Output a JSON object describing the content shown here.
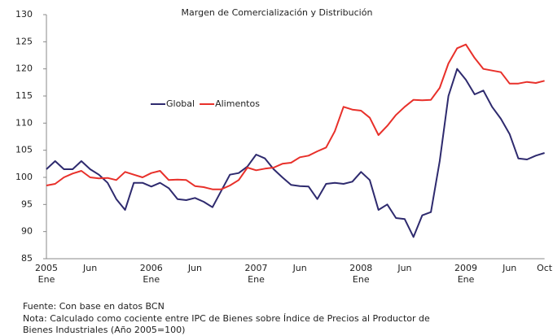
{
  "chart_data": {
    "type": "line",
    "title": "Margen de Comercialización y Distribución",
    "categories": [
      [
        "2005",
        "Ene"
      ],
      null,
      null,
      null,
      null,
      [
        "Jun"
      ],
      null,
      null,
      null,
      null,
      null,
      null,
      [
        "2006",
        "Ene"
      ],
      null,
      null,
      null,
      null,
      [
        "Jun"
      ],
      null,
      null,
      null,
      null,
      null,
      null,
      [
        "2007",
        "Ene"
      ],
      null,
      null,
      null,
      null,
      [
        "Jun"
      ],
      null,
      null,
      null,
      null,
      null,
      null,
      [
        "2008",
        "Ene"
      ],
      null,
      null,
      null,
      null,
      [
        "Jun"
      ],
      null,
      null,
      null,
      null,
      null,
      null,
      [
        "2009",
        "Ene"
      ],
      null,
      null,
      null,
      null,
      [
        "Jun"
      ],
      null,
      null,
      null,
      [
        "Oct"
      ]
    ],
    "series": [
      {
        "name": "Global",
        "color": "#2e2a6e",
        "values": [
          101.5,
          103,
          101.5,
          101.5,
          103,
          101.5,
          100.5,
          99,
          96,
          94,
          99,
          99,
          98.3,
          99,
          98,
          96,
          95.8,
          96.2,
          95.5,
          94.5,
          97.5,
          100.5,
          100.8,
          102,
          104.2,
          103.5,
          101.5,
          100,
          98.6,
          98.4,
          98.3,
          96,
          98.8,
          99,
          98.8,
          99.2,
          101,
          99.5,
          94,
          95,
          92.5,
          92.3,
          89,
          93,
          93.6,
          103,
          115,
          120,
          118,
          115.3,
          116,
          113,
          110.8,
          108,
          103.5,
          103.3,
          104,
          104.5
        ]
      },
      {
        "name": "Alimentos",
        "color": "#e8302a",
        "values": [
          98.5,
          98.8,
          100,
          100.7,
          101.2,
          100,
          99.8,
          99.9,
          99.5,
          101,
          100.5,
          100,
          100.8,
          101.2,
          99.5,
          99.6,
          99.5,
          98.4,
          98.2,
          97.8,
          97.8,
          98.5,
          99.5,
          101.8,
          101.3,
          101.6,
          101.8,
          102.5,
          102.7,
          103.7,
          104,
          104.8,
          105.5,
          108.5,
          113,
          112.5,
          112.3,
          111,
          107.8,
          109.5,
          111.5,
          113,
          114.3,
          114.2,
          114.3,
          116.5,
          121,
          123.8,
          124.5,
          122,
          120,
          119.7,
          119.4,
          117.3,
          117.3,
          117.6,
          117.4,
          117.8
        ]
      }
    ],
    "ylim": [
      85,
      130
    ],
    "yticks": [
      85,
      90,
      95,
      100,
      105,
      110,
      115,
      120,
      125,
      130
    ],
    "notes": [
      "Fuente: Con base en datos BCN",
      "Nota: Calculado como cociente entre IPC de Bienes sobre Índice de Precios al Productor de",
      "Bienes Industriales (Año 2005=100)"
    ]
  }
}
